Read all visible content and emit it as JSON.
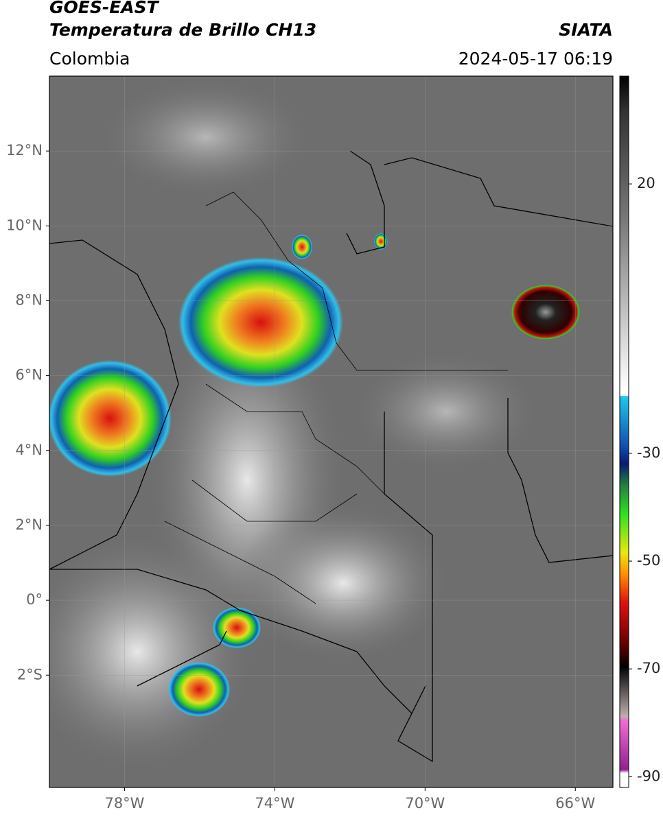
{
  "header": {
    "satellite": "GOES-EAST",
    "product": "Temperatura de Brillo CH13",
    "source": "SIATA",
    "region": "Colombia",
    "datetime": "2024-05-17 06:19"
  },
  "map": {
    "xlim": [
      -80,
      -65
    ],
    "ylim": [
      -5,
      14
    ],
    "xticks": [
      {
        "value": -78,
        "label": "78°W"
      },
      {
        "value": -74,
        "label": "74°W"
      },
      {
        "value": -70,
        "label": "70°W"
      },
      {
        "value": -66,
        "label": "66°W"
      }
    ],
    "yticks": [
      {
        "value": 12,
        "label": "12°N"
      },
      {
        "value": 10,
        "label": "10°N"
      },
      {
        "value": 8,
        "label": "8°N"
      },
      {
        "value": 6,
        "label": "6°N"
      },
      {
        "value": 4,
        "label": "4°N"
      },
      {
        "value": 2,
        "label": "2°N"
      },
      {
        "value": 0,
        "label": "0°"
      },
      {
        "value": -2,
        "label": "2°S"
      }
    ],
    "grid": true
  },
  "colorbar": {
    "lim": [
      -92,
      40
    ],
    "ticks": [
      20,
      -30,
      -50,
      -70,
      -90
    ]
  }
}
